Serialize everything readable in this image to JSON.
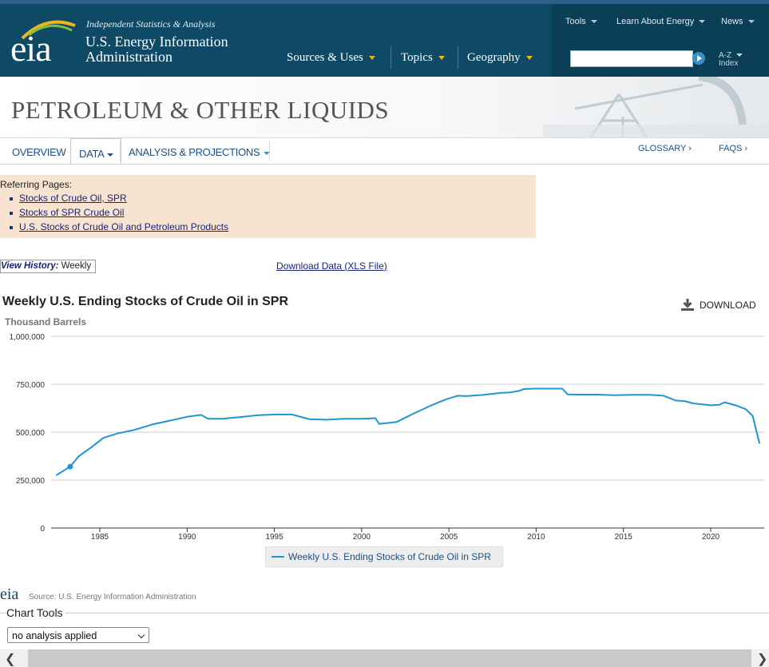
{
  "header": {
    "logo_text": "eia",
    "tagline": "Independent Statistics & Analysis",
    "agency_line1": "U.S. Energy Information",
    "agency_line2": "Administration",
    "main_nav": [
      "Sources & Uses",
      "Topics",
      "Geography"
    ],
    "tool_nav": [
      "Tools",
      "Learn About Energy",
      "News"
    ],
    "search": {
      "value": "",
      "placeholder": ""
    },
    "az_line1": "A-Z",
    "az_line2": "Index"
  },
  "banner": {
    "title": "PETROLEUM & OTHER LIQUIDS"
  },
  "subnav": {
    "tabs": [
      "OVERVIEW",
      "DATA",
      "ANALYSIS & PROJECTIONS"
    ],
    "active_tab": "DATA",
    "glossary": "GLOSSARY ›",
    "faqs": "FAQS ›"
  },
  "referring": {
    "title": "Referring Pages:",
    "links": [
      "Stocks of Crude Oil, SPR",
      "Stocks of SPR Crude Oil",
      "U.S. Stocks of Crude Oil and Petroleum Products"
    ]
  },
  "history": {
    "label": "View History:",
    "value": "Weekly"
  },
  "download_data": {
    "text": "Download Data (",
    "link": "XLS File",
    "close": ")"
  },
  "chart": {
    "title": "Weekly U.S. Ending Stocks of Crude Oil in SPR",
    "units": "Thousand Barrels",
    "download_label": "DOWNLOAD",
    "source": "Source: U.S. Energy Information Administration",
    "logo_small": "eia",
    "line_color": "#1f96d4"
  },
  "chart_data": {
    "type": "line",
    "title": "Weekly U.S. Ending Stocks of Crude Oil in SPR",
    "ylabel": "Thousand Barrels",
    "xlabel": "",
    "ylim": [
      0,
      1000000
    ],
    "yticks": [
      0,
      250000,
      500000,
      750000,
      1000000
    ],
    "ytick_labels": [
      "0",
      "250,000",
      "500,000",
      "750,000",
      "1,000,000"
    ],
    "xticks": [
      1985,
      1990,
      1995,
      2000,
      2005,
      2010,
      2015,
      2020
    ],
    "grid": true,
    "legend_position": "bottom",
    "series": [
      {
        "name": "Weekly U.S. Ending Stocks of Crude Oil in SPR",
        "x": [
          1982.5,
          1983.3,
          1983.8,
          1984.5,
          1985.2,
          1986.0,
          1987.0,
          1988.0,
          1989.0,
          1990.0,
          1990.8,
          1991.2,
          1992.0,
          1993.0,
          1994.0,
          1995.0,
          1996.0,
          1997.0,
          1998.0,
          1999.0,
          2000.0,
          2000.8,
          2001.0,
          2002.0,
          2003.0,
          2004.0,
          2004.8,
          2005.5,
          2006.0,
          2007.0,
          2008.0,
          2008.5,
          2009.0,
          2009.3,
          2010.0,
          2011.0,
          2011.5,
          2011.8,
          2012.5,
          2013.5,
          2014.5,
          2015.5,
          2016.5,
          2017.3,
          2018.0,
          2018.5,
          2019.0,
          2020.0,
          2020.5,
          2020.8,
          2021.5,
          2022.0,
          2022.4,
          2022.8
        ],
        "y": [
          275000,
          320000,
          375000,
          420000,
          470000,
          493000,
          512000,
          540000,
          560000,
          580000,
          590000,
          570000,
          570000,
          578000,
          588000,
          592000,
          592000,
          568000,
          565000,
          570000,
          570000,
          573000,
          543000,
          553000,
          598000,
          640000,
          670000,
          690000,
          688000,
          695000,
          705000,
          707000,
          715000,
          725000,
          727000,
          727000,
          727000,
          697000,
          696000,
          696000,
          693000,
          695000,
          695000,
          690000,
          665000,
          662000,
          650000,
          640000,
          643000,
          656000,
          638000,
          620000,
          585000,
          440000
        ]
      }
    ],
    "highlight_point": {
      "x": 1983.3,
      "y": 320000
    }
  },
  "legend": {
    "label": "Weekly U.S. Ending Stocks of Crude Oil in SPR"
  },
  "chart_tools": {
    "label": "Chart Tools",
    "analysis_value": "no analysis applied"
  }
}
